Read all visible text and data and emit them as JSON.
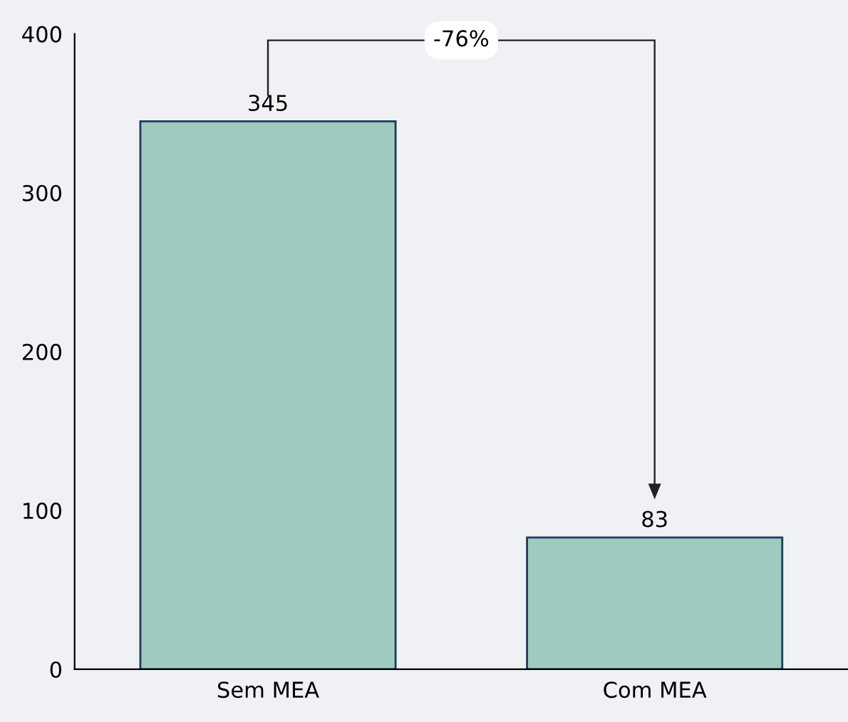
{
  "chart_data": {
    "type": "bar",
    "categories": [
      "Sem MEA",
      "Com MEA"
    ],
    "values": [
      345,
      83
    ],
    "color": "#9fcac0",
    "ylim": [
      0,
      400
    ],
    "yticks": [
      0,
      100,
      200,
      300,
      400
    ],
    "grid": false,
    "data_labels": true,
    "annotations": [
      "-76%"
    ]
  }
}
